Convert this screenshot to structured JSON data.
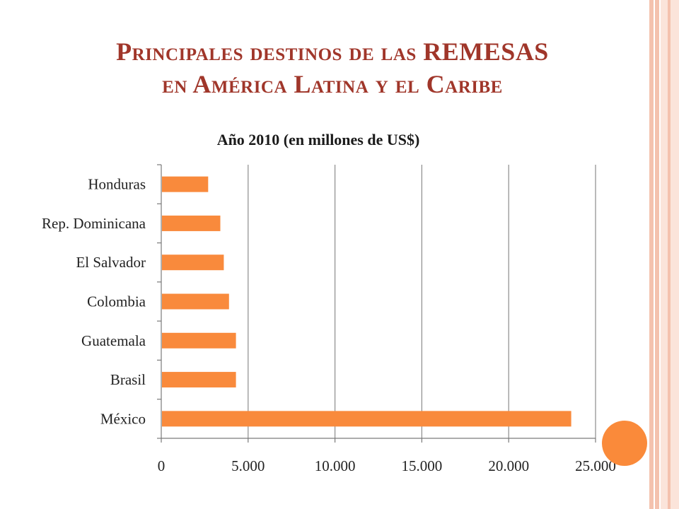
{
  "slide": {
    "title_line1": "Principales destinos de las REMESAS",
    "title_line2": "en América Latina y el Caribe",
    "accent_color": "#a0362a",
    "decor_circle_color": "#fa8a3a"
  },
  "chart_data": {
    "type": "bar",
    "orientation": "horizontal",
    "title": "Año 2010 (en millones de US$)",
    "categories": [
      "Honduras",
      "Rep. Dominicana",
      "El Salvador",
      "Colombia",
      "Guatemala",
      "Brasil",
      "México"
    ],
    "values": [
      2700,
      3400,
      3600,
      3900,
      4300,
      4300,
      23600
    ],
    "xlim": [
      0,
      25000
    ],
    "xticks": [
      0,
      5000,
      10000,
      15000,
      20000,
      25000
    ],
    "xtick_labels": [
      "0",
      "5.000",
      "10.000",
      "15.000",
      "20.000",
      "25.000"
    ],
    "bar_color": "#f98a3c",
    "grid": true,
    "legend": "none"
  }
}
